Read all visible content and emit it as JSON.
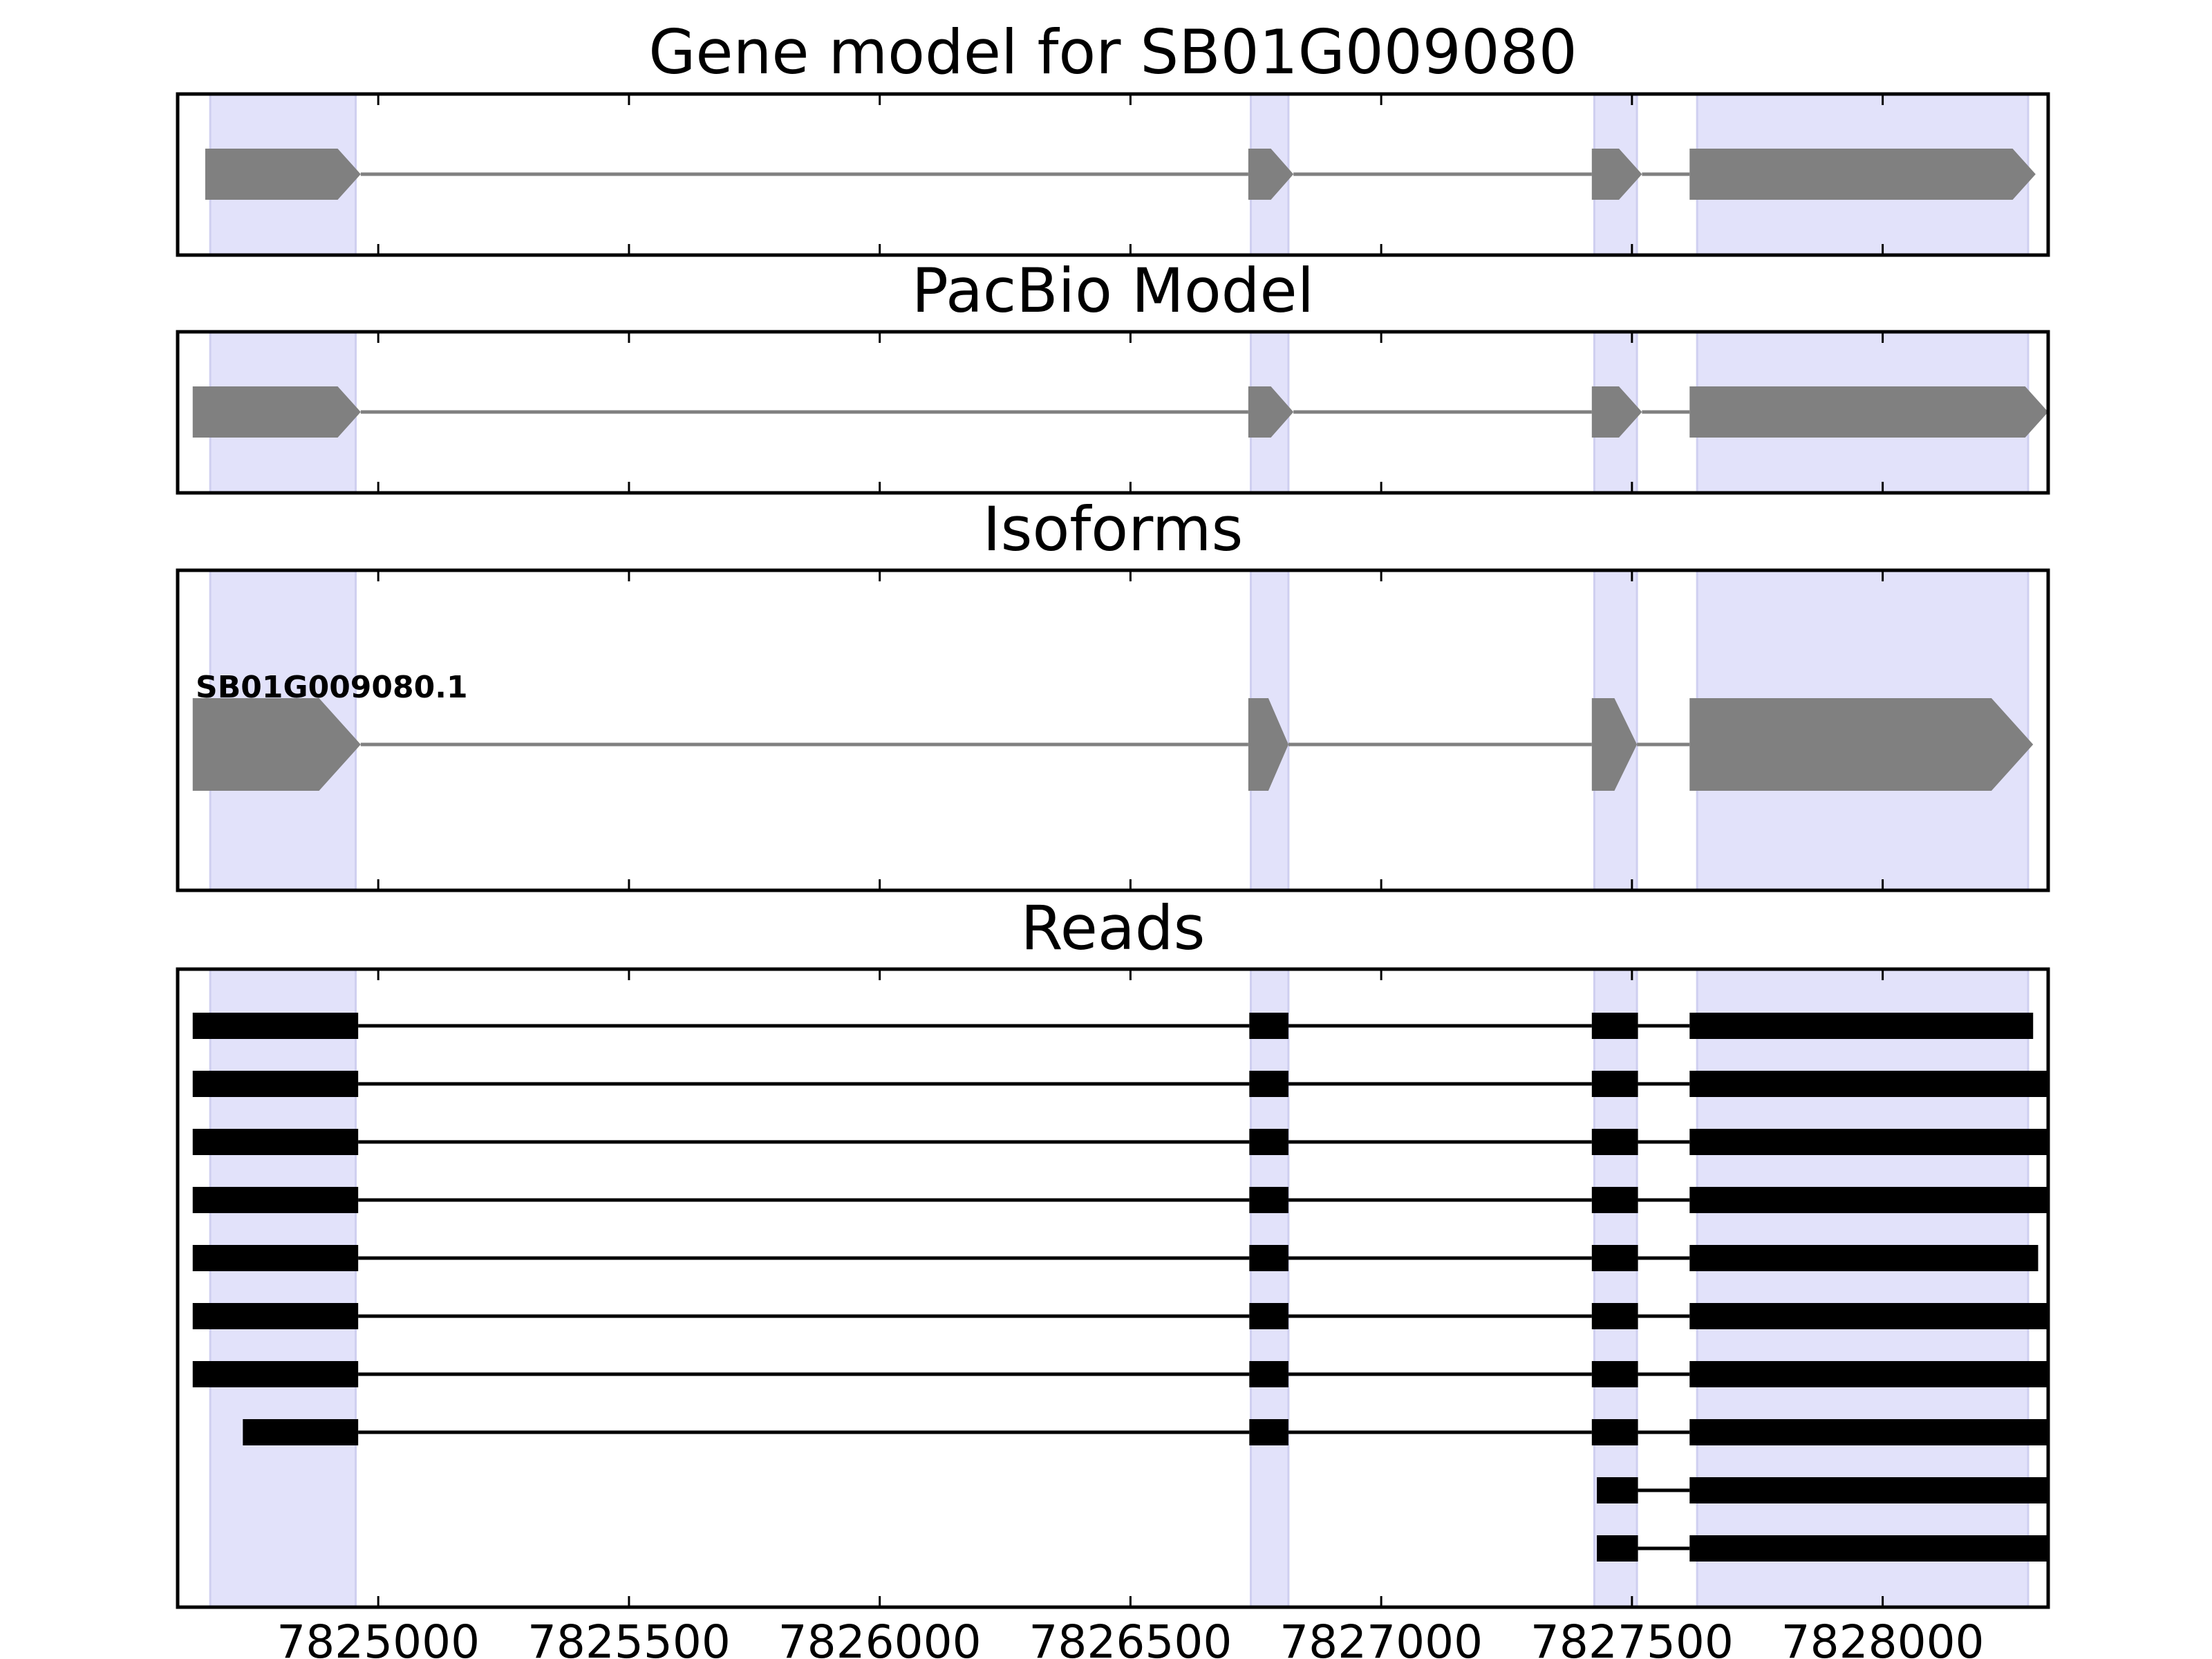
{
  "chart_data": {
    "type": "gene_model_tracks",
    "xlim": [
      7824600,
      7828330
    ],
    "x_ticks": [
      7825000,
      7825500,
      7826000,
      7826500,
      7827000,
      7827500,
      7828000
    ],
    "x_tick_labels": [
      "7825000",
      "7825500",
      "7826000",
      "7826500",
      "7827000",
      "7827500",
      "7828000"
    ],
    "highlight_color": "#e2e2fa",
    "highlight_regions": [
      [
        7824665,
        7824955
      ],
      [
        7826740,
        7826815
      ],
      [
        7827425,
        7827510
      ],
      [
        7827630,
        7828290
      ]
    ],
    "model_color": "#808080",
    "read_color": "#000000",
    "panels": [
      {
        "title": "Gene model for SB01G009080",
        "strand": "+",
        "exons": [
          [
            7824655,
            7824965
          ],
          [
            7826735,
            7826825
          ],
          [
            7827420,
            7827520
          ],
          [
            7827615,
            7828305
          ]
        ]
      },
      {
        "title": "PacBio Model",
        "strand": "+",
        "exons": [
          [
            7824630,
            7824965
          ],
          [
            7826735,
            7826825
          ],
          [
            7827420,
            7827520
          ],
          [
            7827615,
            7828330
          ]
        ]
      },
      {
        "title": "Isoforms",
        "strand": "+",
        "isoforms": [
          {
            "label": "SB01G009080.1",
            "exons": [
              [
                7824630,
                7824965
              ],
              [
                7826735,
                7826815
              ],
              [
                7827420,
                7827510
              ],
              [
                7827615,
                7828300
              ]
            ]
          }
        ]
      },
      {
        "title": "Reads",
        "reads": [
          [
            [
              7824630,
              7824960
            ],
            [
              7826737,
              7826815
            ],
            [
              7827420,
              7827512
            ],
            [
              7827615,
              7828300
            ]
          ],
          [
            [
              7824630,
              7824960
            ],
            [
              7826737,
              7826815
            ],
            [
              7827420,
              7827512
            ],
            [
              7827615,
              7828335
            ]
          ],
          [
            [
              7824630,
              7824960
            ],
            [
              7826737,
              7826815
            ],
            [
              7827420,
              7827512
            ],
            [
              7827615,
              7828335
            ]
          ],
          [
            [
              7824630,
              7824960
            ],
            [
              7826737,
              7826815
            ],
            [
              7827420,
              7827512
            ],
            [
              7827615,
              7828335
            ]
          ],
          [
            [
              7824630,
              7824960
            ],
            [
              7826737,
              7826815
            ],
            [
              7827420,
              7827512
            ],
            [
              7827615,
              7828310
            ]
          ],
          [
            [
              7824630,
              7824960
            ],
            [
              7826737,
              7826815
            ],
            [
              7827420,
              7827512
            ],
            [
              7827615,
              7828335
            ]
          ],
          [
            [
              7824630,
              7824960
            ],
            [
              7826737,
              7826815
            ],
            [
              7827420,
              7827512
            ],
            [
              7827615,
              7828335
            ]
          ],
          [
            [
              7824730,
              7824960
            ],
            [
              7826737,
              7826815
            ],
            [
              7827420,
              7827512
            ],
            [
              7827615,
              7828335
            ]
          ],
          [
            [
              7827430,
              7827512
            ],
            [
              7827615,
              7828335
            ]
          ],
          [
            [
              7827430,
              7827512
            ],
            [
              7827615,
              7828335
            ]
          ]
        ]
      }
    ]
  }
}
